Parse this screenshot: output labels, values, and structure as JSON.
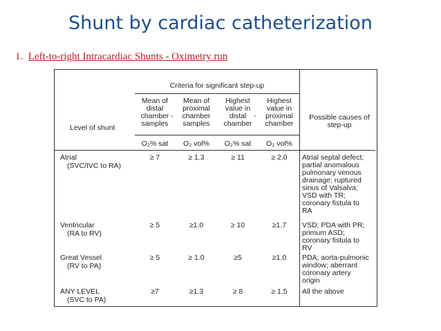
{
  "title": "Shunt by cardiac catheterization",
  "subtitle": {
    "number": "1.",
    "text": "Left-to-right Intracardiac Shunts  - Oximetry run"
  },
  "table": {
    "criteria_header": "Criteria for significant step-up",
    "level_header": "Level of shunt",
    "causes_header": "Possible causes of step-up",
    "column_headers": [
      "Mean of distal chamber samples",
      "Mean of proximal chamber samples",
      "Highest value in distal chamber",
      "Highest value in proximal chamber"
    ],
    "units": [
      "O₂% sat",
      "O₂ vol%",
      "O₂% sat",
      "O₂ vol%"
    ],
    "rows": [
      {
        "level": "Atrial",
        "sub": "(SVC/IVC to RA)",
        "values": [
          "≥ 7",
          "≥ 1.3",
          "≥ 11",
          "≥ 2.0"
        ],
        "causes": "Atrial septal defect; partial anomalous pulmonary venous drainage; ruptured sinus of Valsalva; VSD with TR; coronary fistula to RA"
      },
      {
        "level": "Ventricular",
        "sub": "(RA to RV)",
        "values": [
          "≥ 5",
          "≥1.0",
          "≥ 10",
          "≥1.7"
        ],
        "causes": "VSD; PDA with PR; primum ASD; coronary fistula to RV"
      },
      {
        "level": "Great Vessel",
        "sub": "(RV to PA)",
        "values": [
          "≥ 5",
          "≥ 1.0",
          "≥5",
          "≥1.0"
        ],
        "causes": "PDA; aorta-pulmonic window; aberrant coronary artery origin"
      },
      {
        "level": "ANY LEVEL",
        "sub": "(SVC to PA)",
        "values": [
          "≥7",
          "≥1.3",
          "≥ 8",
          "≥ 1.5"
        ],
        "causes": "All the above"
      }
    ]
  }
}
